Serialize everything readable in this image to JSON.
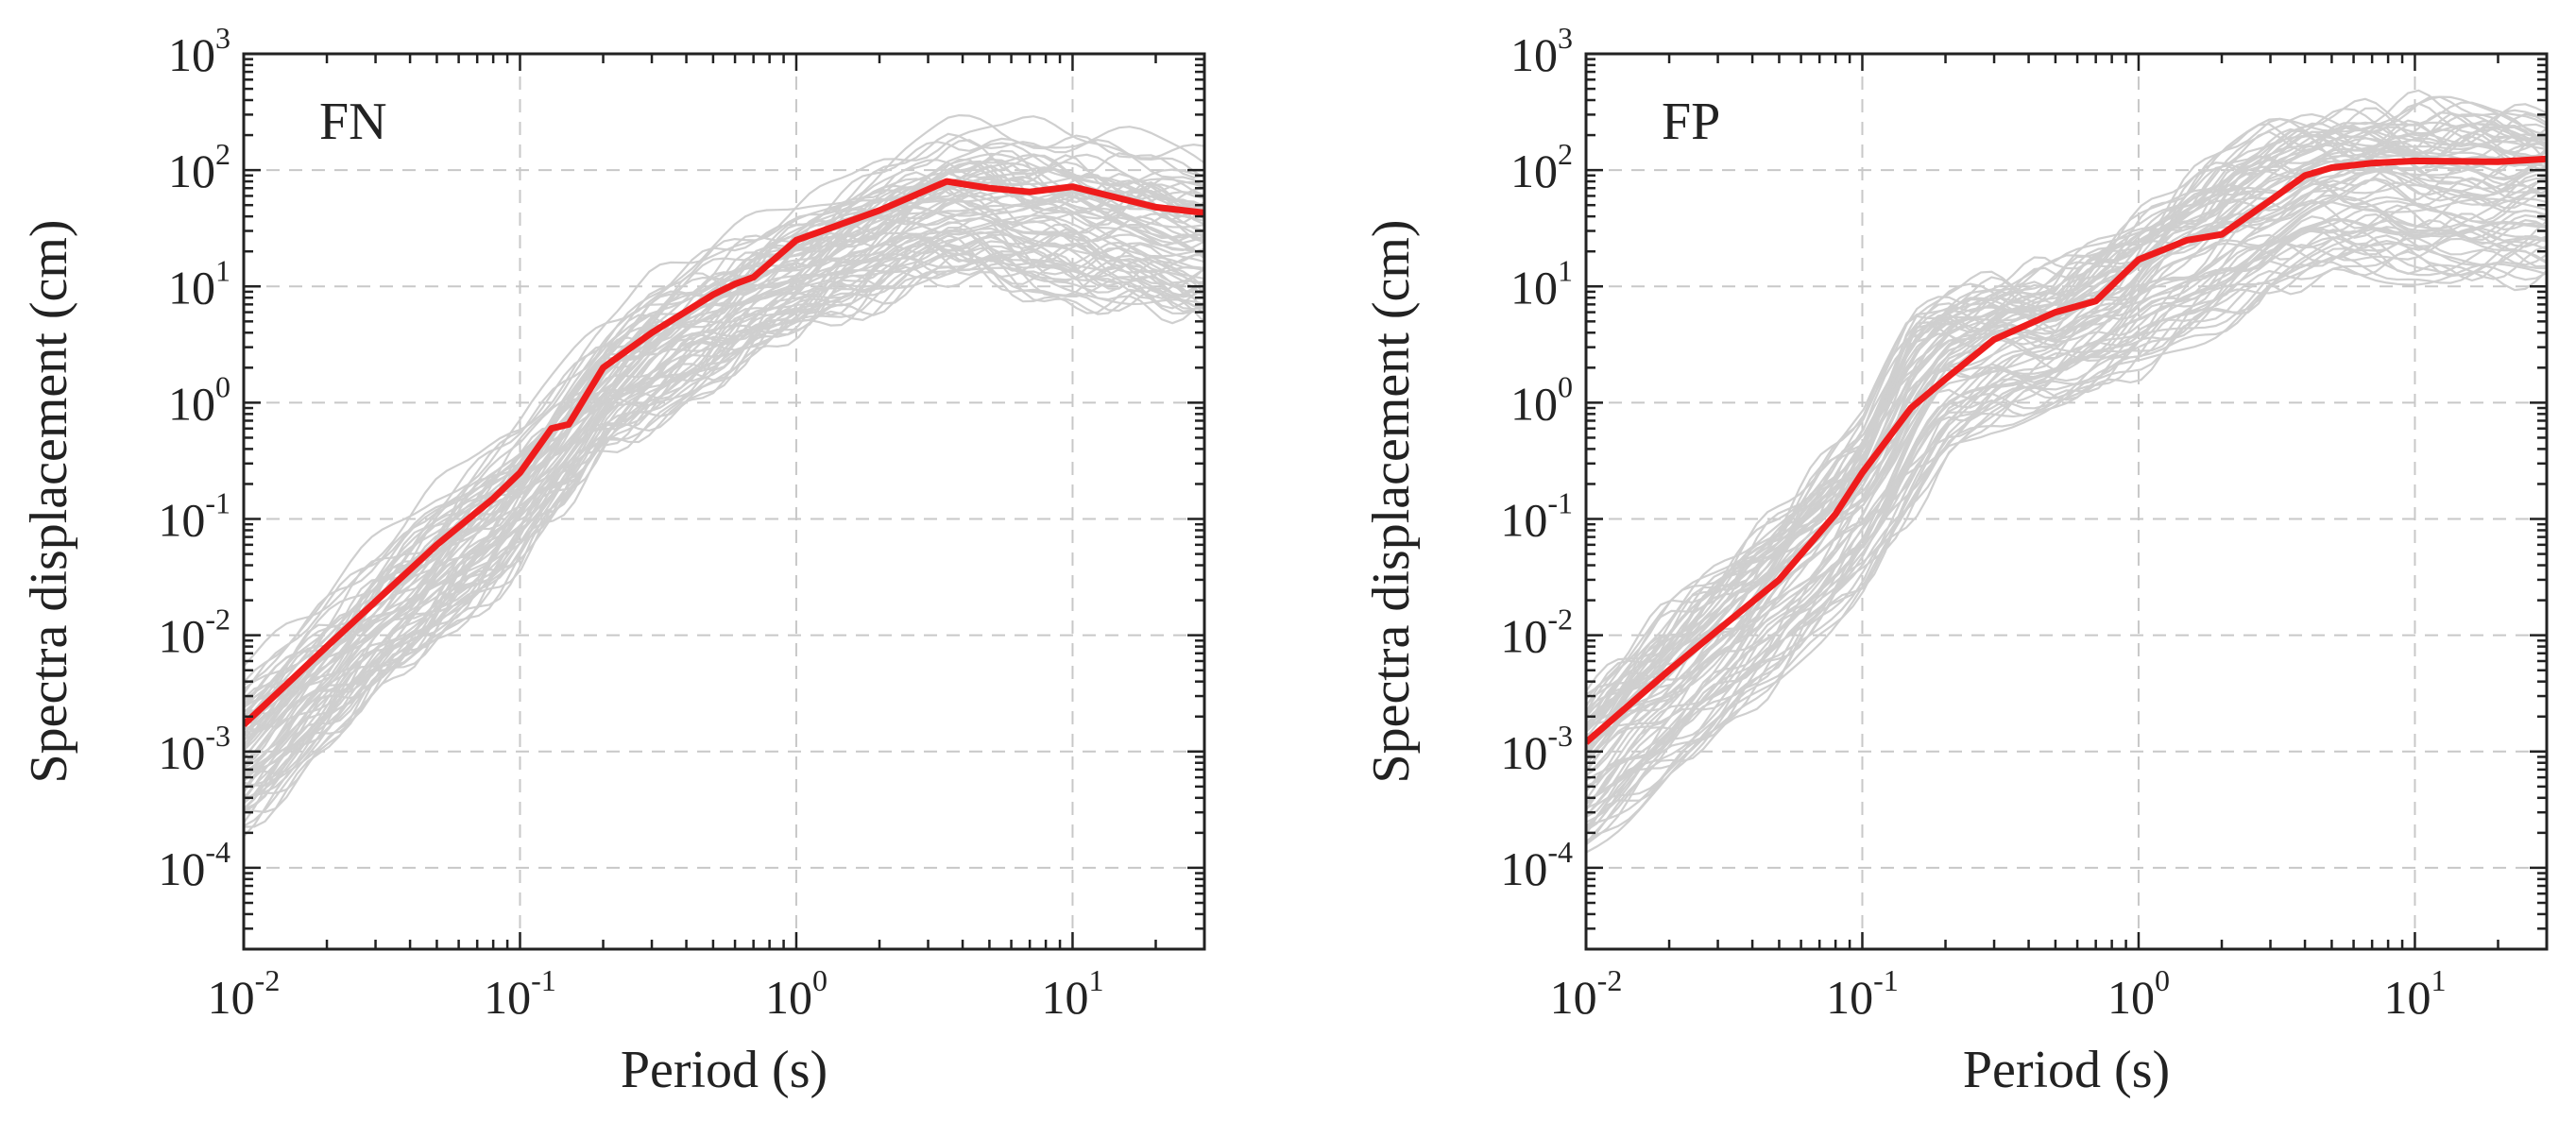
{
  "figure": {
    "description_ylabel": "Spectra displacement (cm)"
  },
  "chart_data": [
    {
      "type": "line",
      "panel_label": "FN",
      "xlabel": "Period (s)",
      "ylabel": "Spectra displacement (cm)",
      "xscale": "log",
      "yscale": "log",
      "xlim": [
        0.01,
        30
      ],
      "ylim": [
        2e-05,
        1000
      ],
      "x_ticks": [
        {
          "base": "10",
          "exp": "-2",
          "value": 0.01
        },
        {
          "base": "10",
          "exp": "-1",
          "value": 0.1
        },
        {
          "base": "10",
          "exp": "0",
          "value": 1
        },
        {
          "base": "10",
          "exp": "1",
          "value": 10
        }
      ],
      "y_ticks": [
        {
          "base": "10",
          "exp": "-4",
          "value": 0.0001
        },
        {
          "base": "10",
          "exp": "-3",
          "value": 0.001
        },
        {
          "base": "10",
          "exp": "-2",
          "value": 0.01
        },
        {
          "base": "10",
          "exp": "-1",
          "value": 0.1
        },
        {
          "base": "10",
          "exp": "0",
          "value": 1
        },
        {
          "base": "10",
          "exp": "1",
          "value": 10
        },
        {
          "base": "10",
          "exp": "2",
          "value": 100
        },
        {
          "base": "10",
          "exp": "3",
          "value": 1000
        }
      ],
      "grid": true,
      "mean_color": "#ee1c1c",
      "record_color": "#cfcfcf",
      "mean_curve": {
        "name": "Mean",
        "x": [
          0.01,
          0.02,
          0.05,
          0.08,
          0.1,
          0.13,
          0.15,
          0.2,
          0.3,
          0.5,
          0.6,
          0.7,
          1.0,
          2.0,
          3.5,
          5.0,
          7.0,
          10.0,
          20.0,
          30.0
        ],
        "y": [
          0.0017,
          0.008,
          0.06,
          0.15,
          0.25,
          0.6,
          0.65,
          2.0,
          4.0,
          8.5,
          10.5,
          12.0,
          25.0,
          45.0,
          80.0,
          70.0,
          65.0,
          72.0,
          48.0,
          43.0
        ]
      },
      "band": {
        "name": "Individual ground motions",
        "count": 70,
        "x": [
          0.01,
          0.02,
          0.05,
          0.1,
          0.2,
          0.3,
          0.5,
          1.0,
          2.0,
          3.5,
          5.0,
          10.0,
          20.0,
          30.0
        ],
        "low": [
          0.00015,
          0.0008,
          0.006,
          0.03,
          0.25,
          0.5,
          1.0,
          3.0,
          6.0,
          8.0,
          7.0,
          5.0,
          3.8,
          3.2
        ],
        "high": [
          0.007,
          0.03,
          0.25,
          0.9,
          6.0,
          15.0,
          30.0,
          60.0,
          150.0,
          300.0,
          350.0,
          300.0,
          240.0,
          200.0
        ]
      }
    },
    {
      "type": "line",
      "panel_label": "FP",
      "xlabel": "Period (s)",
      "ylabel": "Spectra displacement (cm)",
      "xscale": "log",
      "yscale": "log",
      "xlim": [
        0.01,
        30
      ],
      "ylim": [
        2e-05,
        1000
      ],
      "x_ticks": [
        {
          "base": "10",
          "exp": "-2",
          "value": 0.01
        },
        {
          "base": "10",
          "exp": "-1",
          "value": 0.1
        },
        {
          "base": "10",
          "exp": "0",
          "value": 1
        },
        {
          "base": "10",
          "exp": "1",
          "value": 10
        }
      ],
      "y_ticks": [
        {
          "base": "10",
          "exp": "-4",
          "value": 0.0001
        },
        {
          "base": "10",
          "exp": "-3",
          "value": 0.001
        },
        {
          "base": "10",
          "exp": "-2",
          "value": 0.01
        },
        {
          "base": "10",
          "exp": "-1",
          "value": 0.1
        },
        {
          "base": "10",
          "exp": "0",
          "value": 1
        },
        {
          "base": "10",
          "exp": "1",
          "value": 10
        },
        {
          "base": "10",
          "exp": "2",
          "value": 100
        },
        {
          "base": "10",
          "exp": "3",
          "value": 1000
        }
      ],
      "grid": true,
      "mean_color": "#ee1c1c",
      "record_color": "#cfcfcf",
      "mean_curve": {
        "name": "Mean",
        "x": [
          0.01,
          0.02,
          0.05,
          0.08,
          0.1,
          0.15,
          0.2,
          0.3,
          0.5,
          0.7,
          1.0,
          1.5,
          2.0,
          3.0,
          4.0,
          5.0,
          7.0,
          10.0,
          20.0,
          30.0
        ],
        "y": [
          0.0012,
          0.005,
          0.03,
          0.11,
          0.25,
          0.9,
          1.6,
          3.5,
          6.0,
          7.5,
          17.0,
          25.0,
          28.0,
          55.0,
          90.0,
          105.0,
          115.0,
          120.0,
          118.0,
          125.0
        ]
      },
      "band": {
        "name": "Individual ground motions",
        "count": 70,
        "x": [
          0.01,
          0.02,
          0.05,
          0.1,
          0.15,
          0.2,
          0.3,
          0.5,
          1.0,
          2.0,
          3.0,
          4.0,
          5.0,
          10.0,
          20.0,
          30.0
        ],
        "low": [
          0.0001,
          0.0005,
          0.003,
          0.02,
          0.08,
          0.25,
          0.5,
          0.8,
          1.5,
          3.5,
          7.0,
          9.0,
          10.0,
          9.0,
          9.0,
          9.0
        ],
        "high": [
          0.004,
          0.02,
          0.15,
          0.9,
          8.0,
          12.0,
          14.0,
          16.0,
          50.0,
          180.0,
          300.0,
          350.0,
          400.0,
          450.0,
          450.0,
          400.0
        ]
      }
    }
  ]
}
